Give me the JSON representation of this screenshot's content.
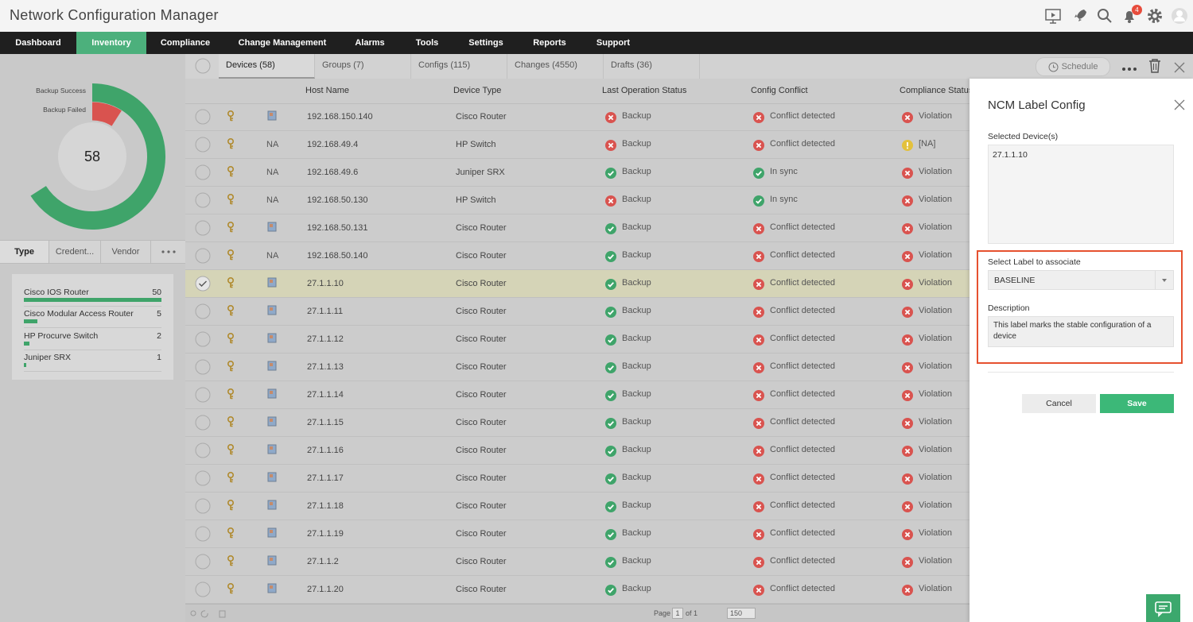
{
  "header": {
    "title": "Network Configuration Manager",
    "notifications": "4"
  },
  "nav": {
    "items": [
      "Dashboard",
      "Inventory",
      "Compliance",
      "Change Management",
      "Alarms",
      "Tools",
      "Settings",
      "Reports",
      "Support"
    ],
    "active": 1
  },
  "sidebar": {
    "donut": {
      "type": "radial-bar",
      "total": 58,
      "series": [
        {
          "name": "Backup Success",
          "color": "#3fa46a",
          "value": 51
        },
        {
          "name": "Backup Failed",
          "color": "#d9534f",
          "value": 7
        }
      ]
    },
    "tabs": [
      "Type",
      "Credent...",
      "Vendor"
    ],
    "types": [
      {
        "name": "Cisco IOS Router",
        "count": 50
      },
      {
        "name": "Cisco Modular Access Router",
        "count": 5
      },
      {
        "name": "HP Procurve Switch",
        "count": 2
      },
      {
        "name": "Juniper SRX",
        "count": 1
      }
    ]
  },
  "tabs": {
    "items": [
      "Devices (58)",
      "Groups (7)",
      "Configs (115)",
      "Changes (4550)",
      "Drafts (36)"
    ],
    "active": 0,
    "schedule": "Schedule"
  },
  "table": {
    "columns": [
      "Host Name",
      "Device Type",
      "Last Operation Status",
      "Config Conflict",
      "Compliance Status"
    ],
    "rows": [
      {
        "host": "192.168.150.140",
        "type": "Cisco Router",
        "op": {
          "text": "Backup",
          "status": "error"
        },
        "conflict": {
          "text": "Conflict detected",
          "status": "error"
        },
        "compliance": {
          "text": "Violation",
          "status": "error"
        }
      },
      {
        "na": "NA",
        "host": "192.168.49.4",
        "type": "HP Switch",
        "op": {
          "text": "Backup",
          "status": "error"
        },
        "conflict": {
          "text": "Conflict detected",
          "status": "error"
        },
        "compliance": {
          "text": "[NA]",
          "status": "warn"
        }
      },
      {
        "na": "NA",
        "host": "192.168.49.6",
        "type": "Juniper SRX",
        "op": {
          "text": "Backup",
          "status": "ok"
        },
        "conflict": {
          "text": "In sync",
          "status": "ok"
        },
        "compliance": {
          "text": "Violation",
          "status": "error"
        }
      },
      {
        "na": "NA",
        "host": "192.168.50.130",
        "type": "HP Switch",
        "op": {
          "text": "Backup",
          "status": "error"
        },
        "conflict": {
          "text": "In sync",
          "status": "ok"
        },
        "compliance": {
          "text": "Violation",
          "status": "error"
        }
      },
      {
        "host": "192.168.50.131",
        "type": "Cisco Router",
        "op": {
          "text": "Backup",
          "status": "ok"
        },
        "conflict": {
          "text": "Conflict detected",
          "status": "error"
        },
        "compliance": {
          "text": "Violation",
          "status": "error"
        }
      },
      {
        "na": "NA",
        "host": "192.168.50.140",
        "type": "Cisco Router",
        "op": {
          "text": "Backup",
          "status": "ok"
        },
        "conflict": {
          "text": "Conflict detected",
          "status": "error"
        },
        "compliance": {
          "text": "Violation",
          "status": "error"
        }
      },
      {
        "host": "27.1.1.10",
        "type": "Cisco Router",
        "op": {
          "text": "Backup",
          "status": "ok"
        },
        "conflict": {
          "text": "Conflict detected",
          "status": "error"
        },
        "compliance": {
          "text": "Violation",
          "status": "error"
        },
        "selected": true
      },
      {
        "host": "27.1.1.11",
        "type": "Cisco Router",
        "op": {
          "text": "Backup",
          "status": "ok"
        },
        "conflict": {
          "text": "Conflict detected",
          "status": "error"
        },
        "compliance": {
          "text": "Violation",
          "status": "error"
        }
      },
      {
        "host": "27.1.1.12",
        "type": "Cisco Router",
        "op": {
          "text": "Backup",
          "status": "ok"
        },
        "conflict": {
          "text": "Conflict detected",
          "status": "error"
        },
        "compliance": {
          "text": "Violation",
          "status": "error"
        }
      },
      {
        "host": "27.1.1.13",
        "type": "Cisco Router",
        "op": {
          "text": "Backup",
          "status": "ok"
        },
        "conflict": {
          "text": "Conflict detected",
          "status": "error"
        },
        "compliance": {
          "text": "Violation",
          "status": "error"
        }
      },
      {
        "host": "27.1.1.14",
        "type": "Cisco Router",
        "op": {
          "text": "Backup",
          "status": "ok"
        },
        "conflict": {
          "text": "Conflict detected",
          "status": "error"
        },
        "compliance": {
          "text": "Violation",
          "status": "error"
        }
      },
      {
        "host": "27.1.1.15",
        "type": "Cisco Router",
        "op": {
          "text": "Backup",
          "status": "ok"
        },
        "conflict": {
          "text": "Conflict detected",
          "status": "error"
        },
        "compliance": {
          "text": "Violation",
          "status": "error"
        }
      },
      {
        "host": "27.1.1.16",
        "type": "Cisco Router",
        "op": {
          "text": "Backup",
          "status": "ok"
        },
        "conflict": {
          "text": "Conflict detected",
          "status": "error"
        },
        "compliance": {
          "text": "Violation",
          "status": "error"
        }
      },
      {
        "host": "27.1.1.17",
        "type": "Cisco Router",
        "op": {
          "text": "Backup",
          "status": "ok"
        },
        "conflict": {
          "text": "Conflict detected",
          "status": "error"
        },
        "compliance": {
          "text": "Violation",
          "status": "error"
        }
      },
      {
        "host": "27.1.1.18",
        "type": "Cisco Router",
        "op": {
          "text": "Backup",
          "status": "ok"
        },
        "conflict": {
          "text": "Conflict detected",
          "status": "error"
        },
        "compliance": {
          "text": "Violation",
          "status": "error"
        }
      },
      {
        "host": "27.1.1.19",
        "type": "Cisco Router",
        "op": {
          "text": "Backup",
          "status": "ok"
        },
        "conflict": {
          "text": "Conflict detected",
          "status": "error"
        },
        "compliance": {
          "text": "Violation",
          "status": "error"
        }
      },
      {
        "host": "27.1.1.2",
        "type": "Cisco Router",
        "op": {
          "text": "Backup",
          "status": "ok"
        },
        "conflict": {
          "text": "Conflict detected",
          "status": "error"
        },
        "compliance": {
          "text": "Violation",
          "status": "error"
        }
      },
      {
        "host": "27.1.1.20",
        "type": "Cisco Router",
        "op": {
          "text": "Backup",
          "status": "ok"
        },
        "conflict": {
          "text": "Conflict detected",
          "status": "error"
        },
        "compliance": {
          "text": "Violation",
          "status": "error"
        }
      }
    ]
  },
  "pagination": {
    "page_label": "Page",
    "page": "1",
    "of": "of 1",
    "per_page": "150"
  },
  "panel": {
    "title": "NCM Label Config",
    "selected_label": "Selected Device(s)",
    "selected": "27.1.1.10",
    "label_prompt": "Select Label to associate",
    "label": "BASELINE",
    "description_label": "Description",
    "description": "This label marks the stable configuration of a device",
    "cancel": "Cancel",
    "save": "Save"
  }
}
